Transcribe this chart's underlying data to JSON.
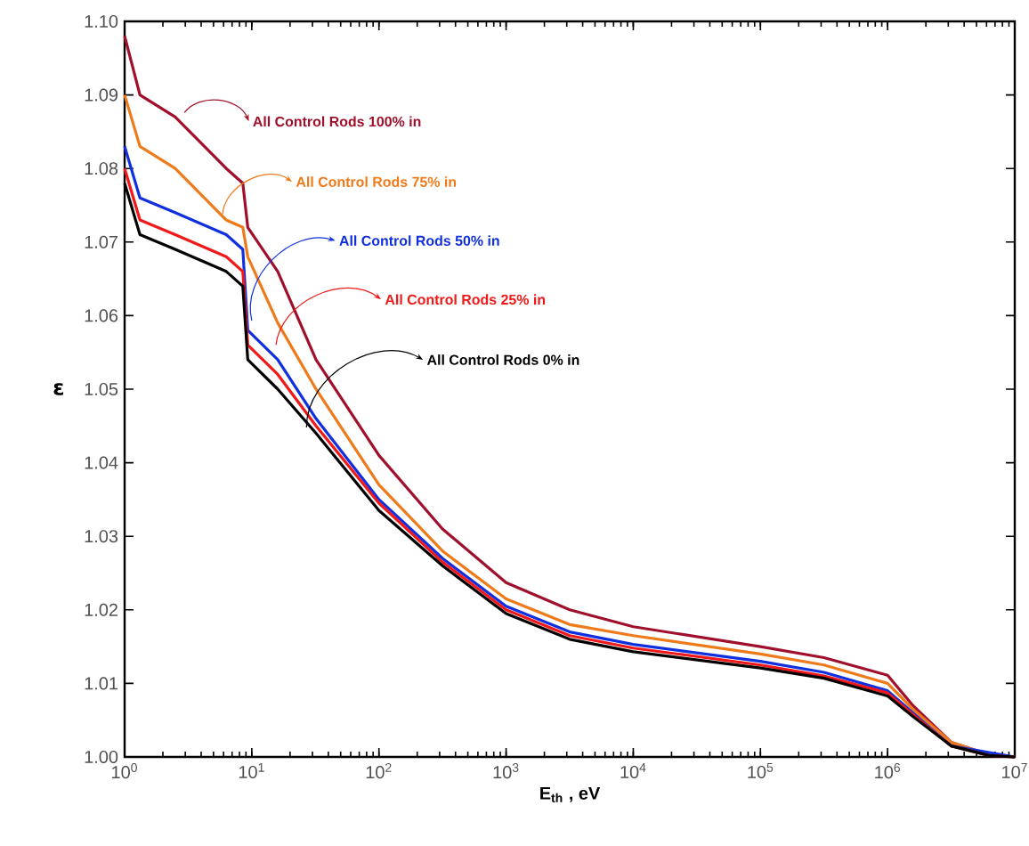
{
  "chart_data": {
    "type": "line",
    "xlabel": "E$_{th}$ , eV",
    "ylabel": "ε",
    "log": "x",
    "marker": "none",
    "line_style": "solid",
    "grid": false,
    "legend": "top left",
    "xlim": [
      1,
      10000000
    ],
    "ylim": [
      1.0,
      1.1
    ],
    "xticks": [
      {
        "value": 1,
        "label": "10$^{0}$"
      },
      {
        "value": 10,
        "label": "10$^{1}$"
      },
      {
        "value": 100,
        "label": "10$^{2}$"
      },
      {
        "value": 1000,
        "label": "10$^{3}$"
      },
      {
        "value": 10000,
        "label": "10$^{4}$"
      },
      {
        "value": 100000,
        "label": "10$^{5}$"
      },
      {
        "value": 1000000,
        "label": "10$^{6}$"
      },
      {
        "value": 10000000,
        "label": "10$^{7}$"
      }
    ],
    "yticks": [
      {
        "value": 1.0,
        "label": "1.00"
      },
      {
        "value": 1.01,
        "label": "1.01"
      },
      {
        "value": 1.02,
        "label": "1.02"
      },
      {
        "value": 1.03,
        "label": "1.03"
      },
      {
        "value": 1.04,
        "label": "1.04"
      },
      {
        "value": 1.05,
        "label": "1.05"
      },
      {
        "value": 1.06,
        "label": "1.06"
      },
      {
        "value": 1.07,
        "label": "1.07"
      },
      {
        "value": 1.08,
        "label": "1.08"
      },
      {
        "value": 1.09,
        "label": "1.09"
      },
      {
        "value": 1.1,
        "label": "1.10"
      }
    ],
    "x": [
      1,
      1.32,
      2.5,
      6.3,
      8.5,
      9.3,
      16,
      32,
      100,
      316,
      1000,
      3162,
      10000,
      100000,
      316228,
      1000000,
      1580000,
      3160000,
      6300000,
      10000000
    ],
    "series": [
      {
        "name": "All Control Rods 100% in",
        "color": "#a0102c",
        "values": [
          1.098,
          1.09,
          1.087,
          1.08,
          1.078,
          1.072,
          1.066,
          1.054,
          1.041,
          1.031,
          1.0237,
          1.02,
          1.0177,
          1.015,
          1.0135,
          1.0111,
          1.007,
          1.002,
          1.0003,
          1.0
        ]
      },
      {
        "name": "All Control Rods 75% in",
        "color": "#ee7a1a",
        "values": [
          1.09,
          1.083,
          1.08,
          1.073,
          1.072,
          1.068,
          1.059,
          1.05,
          1.037,
          1.028,
          1.0215,
          1.018,
          1.0165,
          1.014,
          1.0125,
          1.01,
          1.0065,
          1.002,
          1.0003,
          1.0
        ]
      },
      {
        "name": "All Control Rods 50% in",
        "color": "#1030e0",
        "values": [
          1.083,
          1.076,
          1.074,
          1.071,
          1.069,
          1.058,
          1.054,
          1.046,
          1.035,
          1.027,
          1.0205,
          1.017,
          1.0153,
          1.013,
          1.0115,
          1.009,
          1.006,
          1.0015,
          null,
          1.0
        ]
      },
      {
        "name": "All Control Rods 25% in",
        "color": "#f01818",
        "values": [
          1.08,
          1.073,
          1.071,
          1.068,
          1.066,
          1.056,
          1.052,
          1.045,
          1.0345,
          1.0265,
          1.02,
          1.0165,
          1.0148,
          1.0125,
          1.011,
          1.0087,
          1.0058,
          1.0015,
          1.0002,
          1.0
        ]
      },
      {
        "name": "All Control Rods 0% in",
        "color": "#000000",
        "values": [
          1.078,
          1.071,
          1.069,
          1.066,
          1.064,
          1.054,
          1.05,
          1.044,
          1.0335,
          1.026,
          1.0195,
          1.016,
          1.0143,
          1.0121,
          1.0107,
          1.0083,
          1.0055,
          1.0015,
          1.0002,
          1.0
        ]
      }
    ]
  }
}
